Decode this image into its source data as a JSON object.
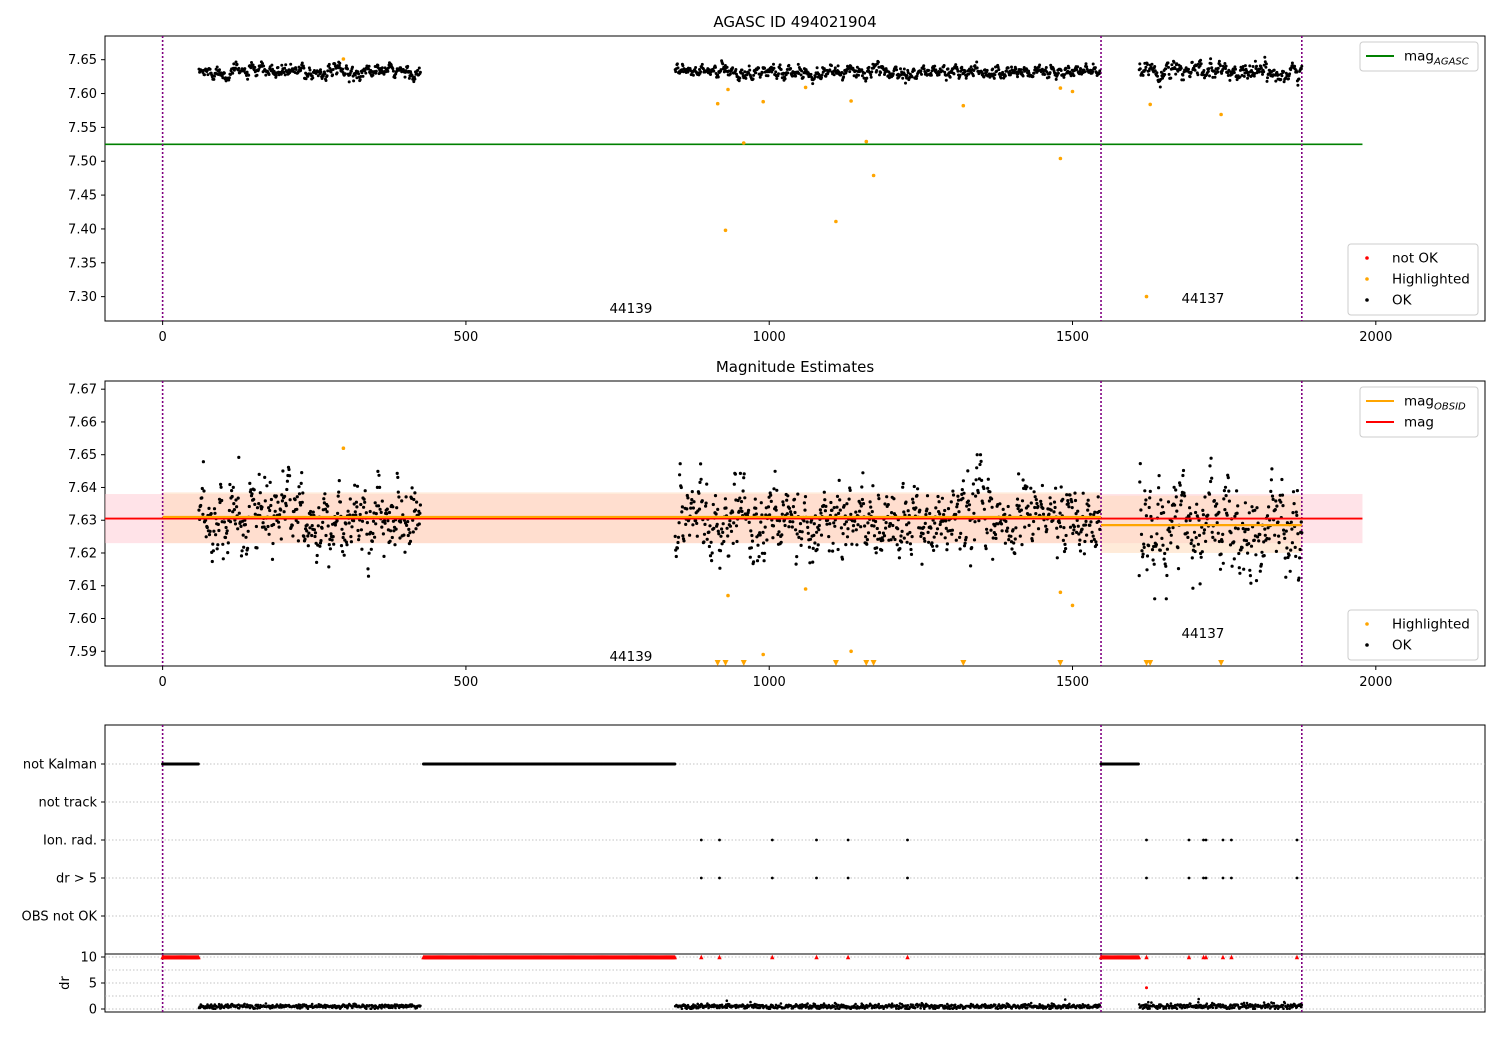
{
  "chart_data": [
    {
      "type": "scatter",
      "title": "AGASC ID 494021904",
      "xlabel": "",
      "ylabel": "",
      "xlim": [
        -95,
        2180
      ],
      "ylim": [
        7.264,
        7.685
      ],
      "xticks": [
        0,
        500,
        1000,
        1500,
        2000
      ],
      "yticks": [
        7.3,
        7.35,
        7.4,
        7.45,
        7.5,
        7.55,
        7.6,
        7.65
      ],
      "grid": false,
      "obsid_boundaries": [
        0,
        1547,
        1878
      ],
      "obsid_labels": [
        {
          "text": "44139",
          "x": 772,
          "y": 7.283
        },
        {
          "text": "44137",
          "x": 1715,
          "y": 7.298
        }
      ],
      "hlines": [
        {
          "name": "mag_AGASC",
          "y": 7.525,
          "x": [
            -95,
            1978
          ],
          "color": "#008000"
        }
      ],
      "legends": [
        {
          "loc": "upper right",
          "entries": [
            {
              "label": "mag",
              "sub": "AGASC",
              "kind": "line",
              "color": "#008000"
            }
          ]
        },
        {
          "loc": "lower right",
          "entries": [
            {
              "label": "not OK",
              "kind": "marker",
              "color": "#ff0000"
            },
            {
              "label": "Highlighted",
              "kind": "marker",
              "color": "#ffa500"
            },
            {
              "label": "OK",
              "kind": "marker",
              "color": "#000000"
            }
          ]
        }
      ],
      "series": [
        {
          "name": "OK",
          "color": "#000000",
          "segments": [
            {
              "x": [
                60,
                425
              ],
              "mean": 7.63,
              "sd": 0.006
            },
            {
              "x": [
                845,
                1545
              ],
              "mean": 7.63,
              "sd": 0.006
            },
            {
              "x": [
                1610,
                1878
              ],
              "mean": 7.628,
              "sd": 0.008
            }
          ]
        },
        {
          "name": "Highlighted",
          "color": "#ffa500",
          "points": [
            [
              298,
              7.651
            ],
            [
              915,
              7.585
            ],
            [
              932,
              7.606
            ],
            [
              928,
              7.398
            ],
            [
              958,
              7.527
            ],
            [
              990,
              7.588
            ],
            [
              1060,
              7.609
            ],
            [
              1110,
              7.411
            ],
            [
              1135,
              7.589
            ],
            [
              1160,
              7.529
            ],
            [
              1172,
              7.479
            ],
            [
              1320,
              7.582
            ],
            [
              1480,
              7.608
            ],
            [
              1480,
              7.504
            ],
            [
              1500,
              7.603
            ],
            [
              1622,
              7.3
            ],
            [
              1628,
              7.584
            ],
            [
              1745,
              7.569
            ]
          ]
        }
      ]
    },
    {
      "type": "scatter",
      "title": "Magnitude Estimates",
      "xlabel": "",
      "ylabel": "",
      "xlim": [
        -95,
        2180
      ],
      "ylim": [
        7.5855,
        7.6725
      ],
      "xticks": [
        0,
        500,
        1000,
        1500,
        2000
      ],
      "yticks": [
        7.59,
        7.6,
        7.61,
        7.62,
        7.63,
        7.64,
        7.65,
        7.66,
        7.67
      ],
      "grid": false,
      "obsid_boundaries": [
        0,
        1547,
        1878
      ],
      "obsid_labels": [
        {
          "text": "44139",
          "x": 772,
          "y": 7.5885
        },
        {
          "text": "44137",
          "x": 1715,
          "y": 7.5955
        }
      ],
      "hlines": [
        {
          "name": "mag",
          "y": 7.6305,
          "x": [
            -95,
            1978
          ],
          "color": "#ff0000",
          "band": [
            7.623,
            7.638
          ],
          "band_color": "#ffc0cb"
        },
        {
          "name": "mag_OBSID 44139",
          "y": 7.631,
          "x": [
            0,
            1547
          ],
          "color": "#ffa500",
          "band": [
            7.623,
            7.6385
          ],
          "band_color": "#ffdab9"
        },
        {
          "name": "mag_OBSID 44137",
          "y": 7.6285,
          "x": [
            1547,
            1878
          ],
          "color": "#ffa500",
          "band": [
            7.62,
            7.6375
          ],
          "band_color": "#ffdab9"
        }
      ],
      "legends": [
        {
          "loc": "upper right",
          "entries": [
            {
              "label": "mag",
              "sub": "OBSID",
              "kind": "line",
              "color": "#ffa500"
            },
            {
              "label": "mag",
              "kind": "line",
              "color": "#ff0000"
            }
          ]
        },
        {
          "loc": "lower right",
          "entries": [
            {
              "label": "Highlighted",
              "kind": "marker",
              "color": "#ffa500"
            },
            {
              "label": "OK",
              "kind": "marker",
              "color": "#000000"
            }
          ]
        }
      ],
      "series": [
        {
          "name": "OK",
          "color": "#000000",
          "segments": [
            {
              "x": [
                60,
                425
              ],
              "mean": 7.63,
              "sd": 0.006
            },
            {
              "x": [
                845,
                1545
              ],
              "mean": 7.63,
              "sd": 0.006
            },
            {
              "x": [
                1610,
                1878
              ],
              "mean": 7.628,
              "sd": 0.008
            }
          ]
        },
        {
          "name": "Highlighted",
          "color": "#ffa500",
          "points": [
            [
              298,
              7.652
            ],
            [
              932,
              7.607
            ],
            [
              1060,
              7.609
            ],
            [
              990,
              7.589
            ],
            [
              1135,
              7.59
            ],
            [
              1480,
              7.608
            ],
            [
              1500,
              7.604
            ]
          ]
        },
        {
          "name": "Highlighted (below axis)",
          "color": "#ffa500",
          "marker": "triangle-down",
          "x": [
            915,
            928,
            958,
            1110,
            1160,
            1172,
            1320,
            1480,
            1622,
            1628,
            1745
          ]
        }
      ]
    },
    {
      "type": "scatter",
      "title": "",
      "xlabel": "",
      "ylabel": "",
      "xlim": [
        -95,
        2180
      ],
      "yticks_categorical": [
        "not Kalman",
        "not track",
        "Ion. rad.",
        "dr > 5",
        "OBS not OK"
      ],
      "grid": true,
      "obsid_boundaries": [
        0,
        1547,
        1878
      ],
      "flags": {
        "not Kalman": [
          [
            0,
            60
          ],
          [
            430,
            845
          ],
          [
            1547,
            1610
          ]
        ],
        "not track": [],
        "Ion. rad.": [
          888,
          918,
          1005,
          1078,
          1130,
          1228,
          1622,
          1692,
          1716,
          1720,
          1748,
          1762,
          1870
        ],
        "dr > 5": [
          888,
          918,
          1005,
          1078,
          1130,
          1228,
          1622,
          1692,
          1716,
          1720,
          1748,
          1762,
          1870
        ],
        "OBS not OK": []
      }
    },
    {
      "type": "scatter",
      "title": "",
      "xlabel": "",
      "ylabel": "dr",
      "xlim": [
        -95,
        2180
      ],
      "ylim": [
        -0.5,
        10.5
      ],
      "yticks": [
        0,
        5,
        10
      ],
      "grid": true,
      "series": [
        {
          "name": "dr",
          "color": "#000000",
          "segments": [
            {
              "x": [
                60,
                425
              ],
              "mean": 0.5,
              "sd": 0.2
            },
            {
              "x": [
                845,
                1545
              ],
              "mean": 0.5,
              "sd": 0.25
            },
            {
              "x": [
                1610,
                1878
              ],
              "mean": 0.5,
              "sd": 0.3
            }
          ],
          "points": [
            [
              930,
              1.6
            ],
            [
              1488,
              1.8
            ],
            [
              1708,
              1.9
            ],
            [
              1625,
              1.3
            ]
          ]
        },
        {
          "name": "dr clipped",
          "color": "#ff0000",
          "marker": "triangle-up",
          "y": 10,
          "ranges": [
            [
              0,
              60
            ],
            [
              430,
              845
            ],
            [
              1547,
              1610
            ]
          ],
          "x": [
            888,
            918,
            1005,
            1078,
            1130,
            1228,
            1622,
            1692,
            1716,
            1720,
            1748,
            1762,
            1870
          ]
        },
        {
          "name": "dr outlier",
          "color": "#ff0000",
          "points": [
            [
              1622,
              4.1
            ]
          ]
        }
      ]
    }
  ]
}
